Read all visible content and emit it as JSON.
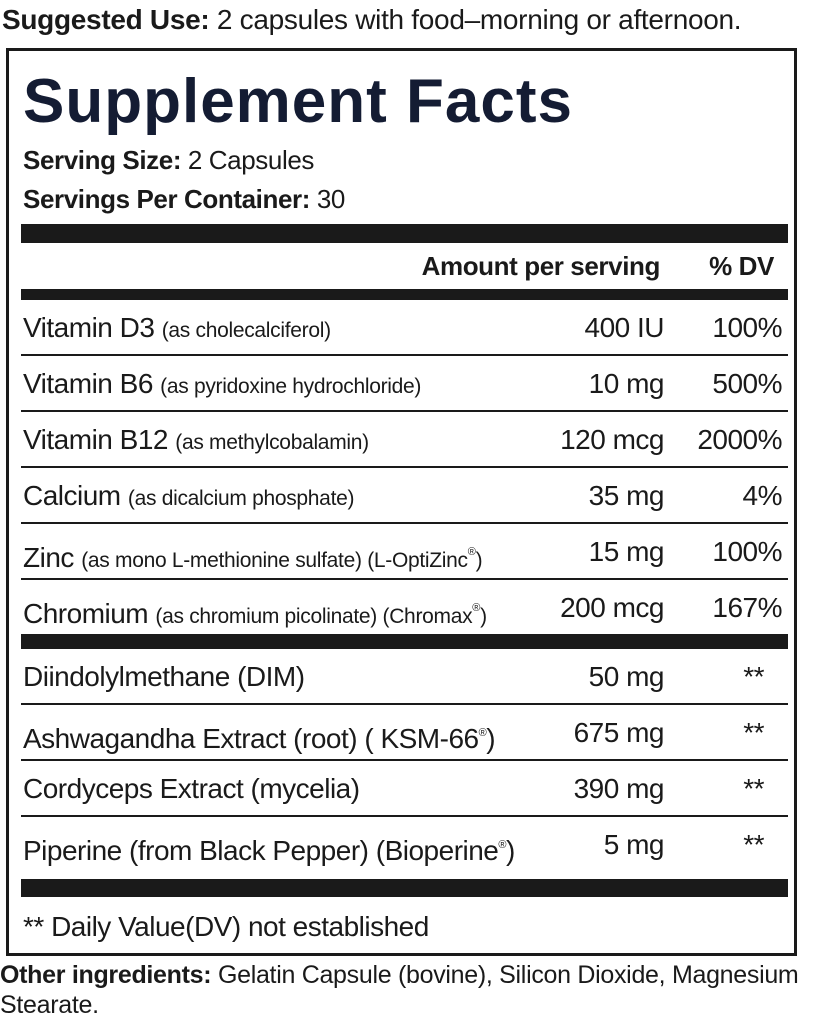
{
  "suggested_use": {
    "label": "Suggested Use:",
    "text": " 2 capsules with food–morning or afternoon."
  },
  "panel": {
    "title": "Supplement Facts",
    "serving_size_label": "Serving Size:",
    "serving_size_value": " 2 Capsules",
    "servings_per_container_label": "Servings Per Container:",
    "servings_per_container_value": " 30",
    "header_amount": "Amount per serving",
    "header_dv": "% DV",
    "vitamins": [
      {
        "name": "Vitamin D3",
        "detail": "(as cholecalciferol)",
        "detail_suffix": "",
        "amount": "400 IU",
        "dv": "100%"
      },
      {
        "name": "Vitamin B6",
        "detail": "(as pyridoxine hydrochloride)",
        "detail_suffix": "",
        "amount": "10 mg",
        "dv": "500%"
      },
      {
        "name": "Vitamin B12",
        "detail": "(as methylcobalamin)",
        "detail_suffix": "",
        "amount": "120 mcg",
        "dv": "2000%"
      },
      {
        "name": "Calcium",
        "detail": "(as dicalcium phosphate)",
        "detail_suffix": "",
        "amount": "35 mg",
        "dv": "4%"
      },
      {
        "name": "Zinc",
        "detail": "(as mono L-methionine sulfate) (L-OptiZinc",
        "detail_suffix": ")",
        "amount": "15 mg",
        "dv": "100%"
      },
      {
        "name": "Chromium",
        "detail": "(as chromium picolinate) (Chromax",
        "detail_suffix": ")",
        "amount": "200 mcg",
        "dv": "167%"
      }
    ],
    "others": [
      {
        "name": "Diindolylmethane (DIM)",
        "name_suffix": "",
        "amount": "50 mg",
        "dv": "**"
      },
      {
        "name": "Ashwagandha Extract (root) ( KSM-66",
        "name_suffix": ")",
        "amount": "675 mg",
        "dv": "**"
      },
      {
        "name": "Cordyceps Extract (mycelia)",
        "name_suffix": "",
        "amount": "390 mg",
        "dv": "**"
      },
      {
        "name": "Piperine (from Black Pepper) (Bioperine",
        "name_suffix": ")",
        "amount": "5 mg",
        "dv": "**"
      }
    ],
    "registered_mark": "®",
    "footnote": "** Daily Value(DV) not established"
  },
  "other_ingredients": {
    "label": "Other ingredients:",
    "text": " Gelatin Capsule (bovine), Silicon Dioxide, Magnesium Stearate."
  }
}
